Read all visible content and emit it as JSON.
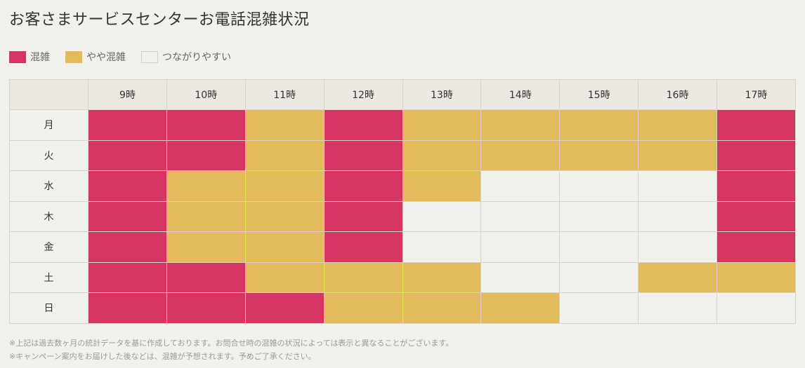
{
  "title": "お客さまサービスセンターお電話混雑状況",
  "legend": [
    {
      "key": "high",
      "label": "混雑",
      "color": "#d43561"
    },
    {
      "key": "mid",
      "label": "やや混雑",
      "color": "#e3bb5a"
    },
    {
      "key": "low",
      "label": "つながりやすい",
      "color": "#f2f1ec"
    }
  ],
  "table": {
    "corner": "",
    "hours": [
      "9時",
      "10時",
      "11時",
      "12時",
      "13時",
      "14時",
      "15時",
      "16時",
      "17時"
    ],
    "rows": [
      {
        "day": "月",
        "levels": [
          "high",
          "high",
          "mid",
          "high",
          "mid",
          "mid",
          "mid",
          "mid",
          "high"
        ]
      },
      {
        "day": "火",
        "levels": [
          "high",
          "high",
          "mid",
          "high",
          "mid",
          "mid",
          "mid",
          "mid",
          "high"
        ]
      },
      {
        "day": "水",
        "levels": [
          "high",
          "mid",
          "mid",
          "high",
          "mid",
          "low",
          "low",
          "low",
          "high"
        ]
      },
      {
        "day": "木",
        "levels": [
          "high",
          "mid",
          "mid",
          "high",
          "low",
          "low",
          "low",
          "low",
          "high"
        ]
      },
      {
        "day": "金",
        "levels": [
          "high",
          "mid",
          "mid",
          "high",
          "low",
          "low",
          "low",
          "low",
          "high"
        ]
      },
      {
        "day": "土",
        "levels": [
          "high",
          "high",
          "mid",
          "mid",
          "mid",
          "low",
          "low",
          "mid",
          "mid"
        ]
      },
      {
        "day": "日",
        "levels": [
          "high",
          "high",
          "high",
          "mid",
          "mid",
          "mid",
          "low",
          "low",
          "low"
        ]
      }
    ]
  },
  "notes": [
    "※上記は過去数ヶ月の統計データを基に作成しております。お問合せ時の混雑の状況によっては表示と異なることがございます。",
    "※キャンペーン案内をお届けした後などは、混雑が予想されます。予めご了承ください。"
  ]
}
